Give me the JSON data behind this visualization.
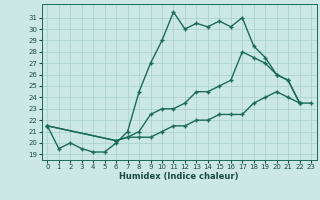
{
  "xlabel": "Humidex (Indice chaleur)",
  "background_color": "#cce8e4",
  "grid_color": "#a8d0cc",
  "line_color": "#1a6b5a",
  "xlim": [
    -0.5,
    23.5
  ],
  "ylim": [
    18.5,
    32.2
  ],
  "xticks": [
    0,
    1,
    2,
    3,
    4,
    5,
    6,
    7,
    8,
    9,
    10,
    11,
    12,
    13,
    14,
    15,
    16,
    17,
    18,
    19,
    20,
    21,
    22,
    23
  ],
  "yticks": [
    19,
    20,
    21,
    22,
    23,
    24,
    25,
    26,
    27,
    28,
    29,
    30,
    31
  ],
  "curve_top_x": [
    0,
    1,
    2,
    3,
    4,
    5,
    6,
    7,
    8,
    9,
    10,
    11,
    12,
    13,
    14,
    15,
    16,
    17,
    18,
    19,
    20,
    21,
    22
  ],
  "curve_top_y": [
    21.5,
    19.5,
    20.0,
    19.5,
    19.2,
    19.2,
    20.0,
    21.0,
    24.5,
    27.0,
    29.0,
    31.5,
    30.0,
    30.5,
    30.2,
    30.7,
    30.2,
    31.0,
    28.5,
    27.5,
    26.0,
    25.5,
    23.5
  ],
  "curve_mid_x": [
    0,
    6,
    7,
    8,
    9,
    10,
    11,
    12,
    13,
    14,
    15,
    16,
    17,
    18,
    19,
    20,
    21,
    22
  ],
  "curve_mid_y": [
    21.5,
    20.2,
    20.5,
    21.0,
    22.5,
    23.0,
    23.0,
    23.5,
    24.5,
    24.5,
    25.0,
    25.5,
    28.0,
    27.5,
    27.0,
    26.0,
    25.5,
    23.5
  ],
  "curve_bot_x": [
    0,
    6,
    7,
    8,
    9,
    10,
    11,
    12,
    13,
    14,
    15,
    16,
    17,
    18,
    19,
    20,
    21,
    22,
    23
  ],
  "curve_bot_y": [
    21.5,
    20.2,
    20.5,
    20.5,
    20.5,
    21.0,
    21.5,
    21.5,
    22.0,
    22.0,
    22.5,
    22.5,
    22.5,
    23.5,
    24.0,
    24.5,
    24.0,
    23.5,
    23.5
  ]
}
